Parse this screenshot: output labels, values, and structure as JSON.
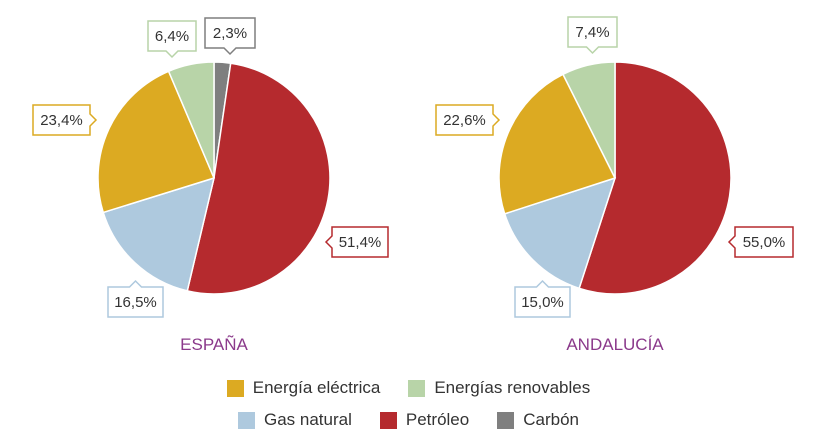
{
  "chart_data": [
    {
      "type": "pie",
      "title": "ESPAÑA",
      "slices": [
        {
          "category": "Carbón",
          "value": 2.3,
          "label": "2,3%",
          "color": "#7f7f7f"
        },
        {
          "category": "Petróleo",
          "value": 51.4,
          "label": "51,4%",
          "color": "#b52a2e"
        },
        {
          "category": "Gas natural",
          "value": 16.5,
          "label": "16,5%",
          "color": "#aec9de"
        },
        {
          "category": "Energía eléctrica",
          "value": 23.4,
          "label": "23,4%",
          "color": "#dcaa22"
        },
        {
          "category": "Energías renovables",
          "value": 6.4,
          "label": "6,4%",
          "color": "#b8d4a8"
        }
      ]
    },
    {
      "type": "pie",
      "title": "ANDALUCÍA",
      "slices": [
        {
          "category": "Petróleo",
          "value": 55.0,
          "label": "55,0%",
          "color": "#b52a2e"
        },
        {
          "category": "Gas natural",
          "value": 15.0,
          "label": "15,0%",
          "color": "#aec9de"
        },
        {
          "category": "Energía eléctrica",
          "value": 22.6,
          "label": "22,6%",
          "color": "#dcaa22"
        },
        {
          "category": "Energías renovables",
          "value": 7.4,
          "label": "7,4%",
          "color": "#b8d4a8"
        }
      ]
    }
  ],
  "legend": {
    "row1": [
      {
        "label": "Energía eléctrica",
        "color": "#dcaa22"
      },
      {
        "label": "Energías renovables",
        "color": "#b8d4a8"
      }
    ],
    "row2": [
      {
        "label": "Gas natural",
        "color": "#aec9de"
      },
      {
        "label": "Petróleo",
        "color": "#b52a2e"
      },
      {
        "label": "Carbón",
        "color": "#7f7f7f"
      }
    ]
  },
  "colors": {
    "title": "#8b3a8b",
    "label_text": "#333333"
  }
}
